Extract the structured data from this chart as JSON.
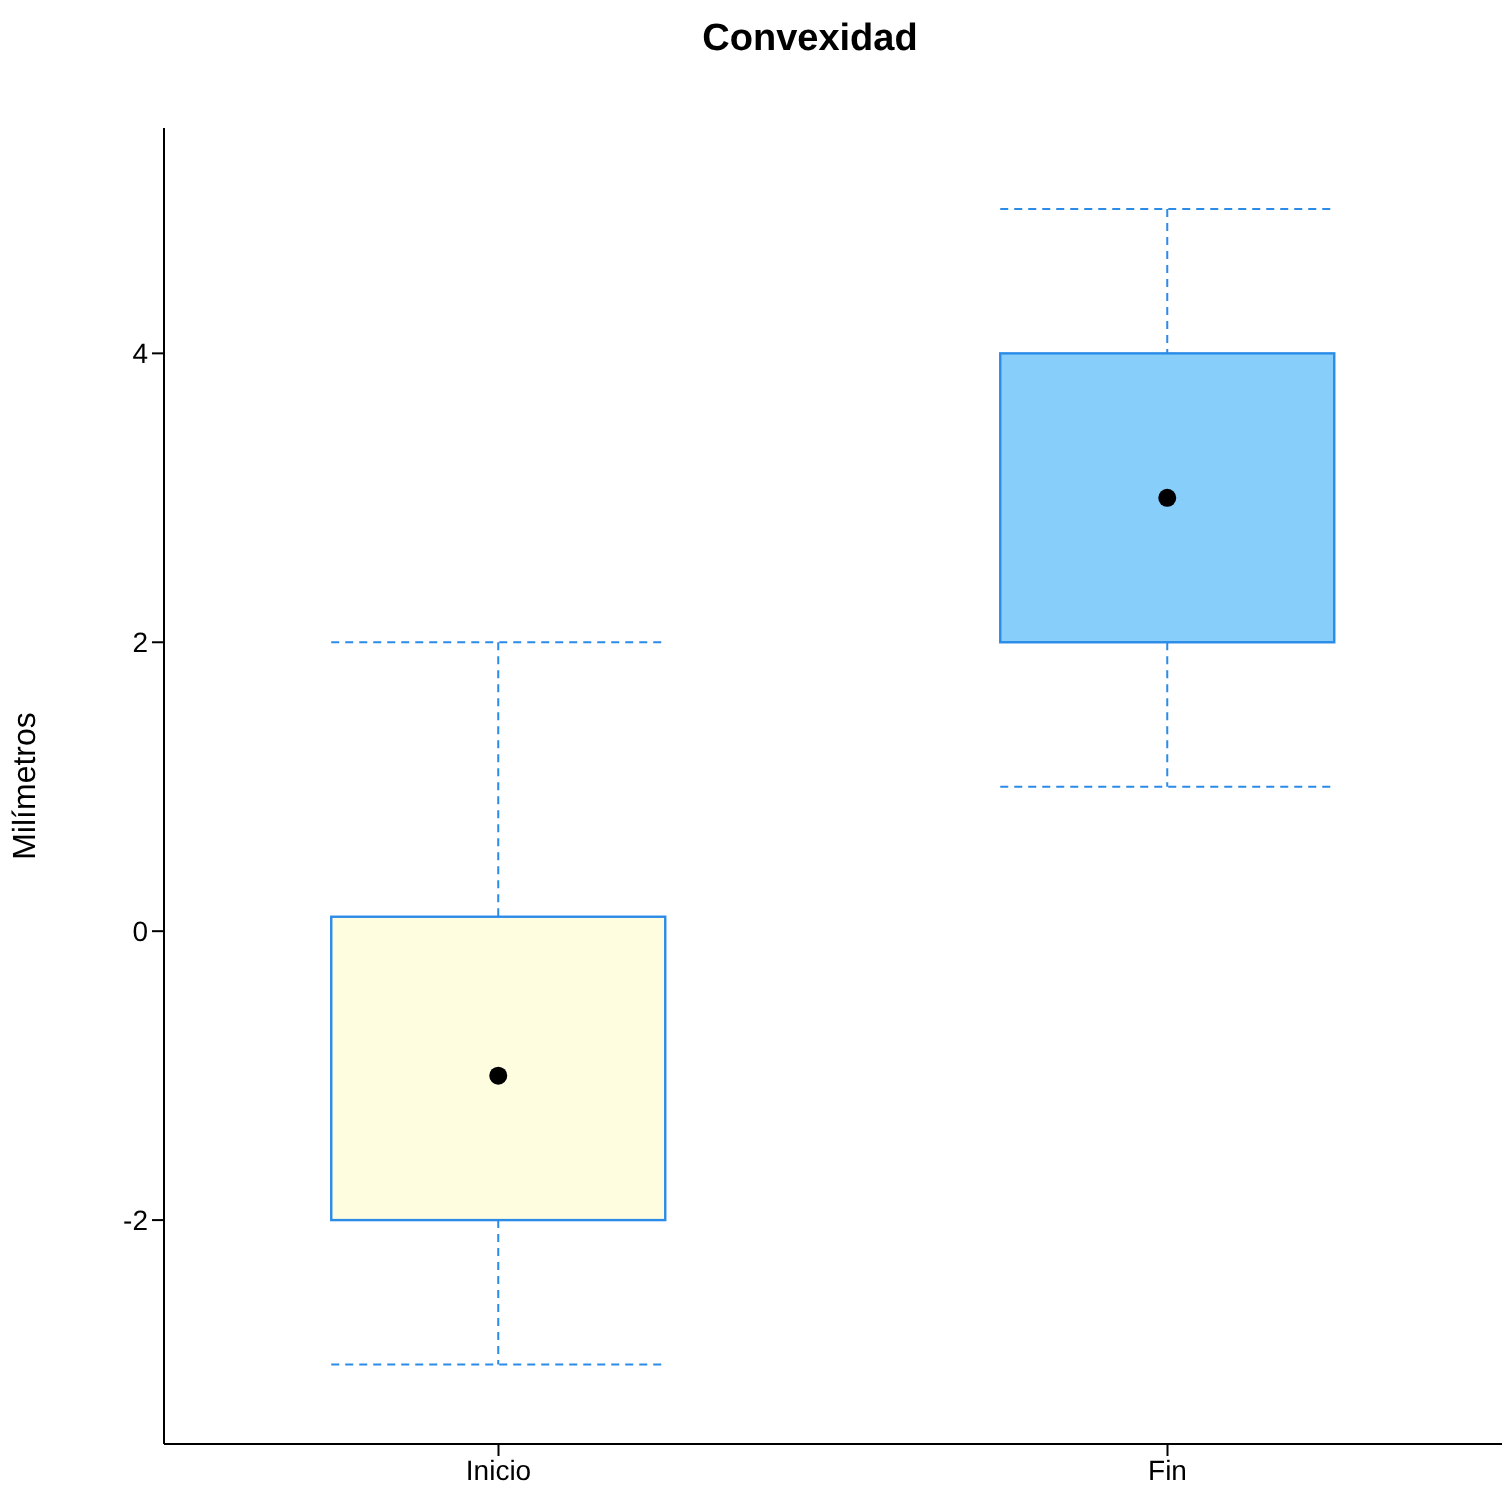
{
  "chart_data": {
    "type": "box",
    "title": "Convexidad",
    "ylabel": "Milímetros",
    "categories": [
      "Inicio",
      "Fin"
    ],
    "colors": [
      "#fffde0",
      "#87cefa"
    ],
    "boxes": [
      {
        "low": -3,
        "q1": -2,
        "median": -1,
        "q3": 0.1,
        "high": 2
      },
      {
        "low": 1,
        "q1": 2,
        "median": 3,
        "q3": 4,
        "high": 5
      }
    ],
    "ylim": [
      -3.55,
      5.56
    ],
    "yticks": [
      -2,
      0,
      2,
      4
    ]
  }
}
